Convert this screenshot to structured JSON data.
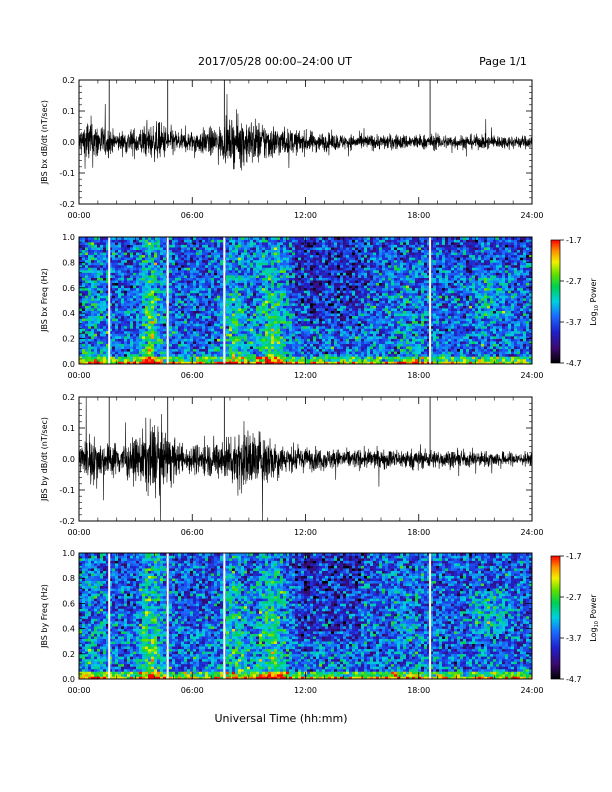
{
  "header": {
    "title": "2017/05/28  00:00–24:00 UT",
    "page": "Page 1/1"
  },
  "xlabel": "Universal Time (hh:mm)",
  "colorbar": {
    "label_prefix": "Log",
    "label_sub": "10",
    "label_suffix": " Power",
    "ticks": [
      "-1.7",
      "-2.7",
      "-3.7",
      "-4.7"
    ],
    "range": [
      -4.7,
      -1.7
    ]
  },
  "chart_data": [
    {
      "type": "line",
      "ylabel": "JBS bx dB/dt (nT/sec)",
      "xlim": [
        0,
        24
      ],
      "ylim": [
        -0.2,
        0.2
      ],
      "x_ticks": [
        "00:00",
        "06:00",
        "12:00",
        "18:00",
        "24:00"
      ],
      "y_ticks": [
        "0.2",
        "0.1",
        "0.0",
        "-0.1",
        "-0.2"
      ],
      "gap_lines_hours": [
        1.6,
        4.7,
        7.7,
        18.6
      ],
      "envelope": [
        {
          "x": 0.0,
          "amp": 0.02
        },
        {
          "x": 0.5,
          "amp": 0.04
        },
        {
          "x": 1.0,
          "amp": 0.03
        },
        {
          "x": 2.0,
          "amp": 0.015
        },
        {
          "x": 3.5,
          "amp": 0.025
        },
        {
          "x": 4.3,
          "amp": 0.03
        },
        {
          "x": 5.5,
          "amp": 0.015
        },
        {
          "x": 7.5,
          "amp": 0.025
        },
        {
          "x": 8.5,
          "amp": 0.04
        },
        {
          "x": 10.0,
          "amp": 0.03
        },
        {
          "x": 11.0,
          "amp": 0.02
        },
        {
          "x": 14.0,
          "amp": 0.012
        },
        {
          "x": 18.0,
          "amp": 0.012
        },
        {
          "x": 24.0,
          "amp": 0.01
        }
      ]
    },
    {
      "type": "heatmap",
      "ylabel": "JBS bx Freq (Hz)",
      "xlim": [
        0,
        24
      ],
      "ylim": [
        0.0,
        1.0
      ],
      "x_ticks": [
        "00:00",
        "06:00",
        "12:00",
        "18:00",
        "24:00"
      ],
      "y_ticks": [
        "1.0",
        "0.8",
        "0.6",
        "0.4",
        "0.2",
        "0.0"
      ],
      "gap_lines_hours": [
        1.6,
        4.7,
        7.7,
        18.6
      ],
      "zlim": [
        -4.7,
        -1.7
      ]
    },
    {
      "type": "line",
      "ylabel": "JBS by dB/dt (nT/sec)",
      "xlim": [
        0,
        24
      ],
      "ylim": [
        -0.2,
        0.2
      ],
      "x_ticks": [
        "00:00",
        "06:00",
        "12:00",
        "18:00",
        "24:00"
      ],
      "y_ticks": [
        "0.2",
        "0.1",
        "0.0",
        "-0.1",
        "-0.2"
      ],
      "gap_lines_hours": [
        1.6,
        4.7,
        7.7,
        18.6
      ],
      "envelope": [
        {
          "x": 0.0,
          "amp": 0.02
        },
        {
          "x": 0.6,
          "amp": 0.04
        },
        {
          "x": 1.5,
          "amp": 0.025
        },
        {
          "x": 3.0,
          "amp": 0.03
        },
        {
          "x": 3.8,
          "amp": 0.06
        },
        {
          "x": 4.4,
          "amp": 0.05
        },
        {
          "x": 5.5,
          "amp": 0.02
        },
        {
          "x": 7.5,
          "amp": 0.03
        },
        {
          "x": 8.5,
          "amp": 0.05
        },
        {
          "x": 10.0,
          "amp": 0.04
        },
        {
          "x": 11.0,
          "amp": 0.02
        },
        {
          "x": 14.0,
          "amp": 0.015
        },
        {
          "x": 18.0,
          "amp": 0.015
        },
        {
          "x": 24.0,
          "amp": 0.01
        }
      ]
    },
    {
      "type": "heatmap",
      "ylabel": "JBS by Freq (Hz)",
      "xlim": [
        0,
        24
      ],
      "ylim": [
        0.0,
        1.0
      ],
      "x_ticks": [
        "00:00",
        "06:00",
        "12:00",
        "18:00",
        "24:00"
      ],
      "y_ticks": [
        "1.0",
        "0.8",
        "0.6",
        "0.4",
        "0.2",
        "0.0"
      ],
      "gap_lines_hours": [
        1.6,
        4.7,
        7.7,
        18.6
      ],
      "zlim": [
        -4.7,
        -1.7
      ]
    }
  ]
}
